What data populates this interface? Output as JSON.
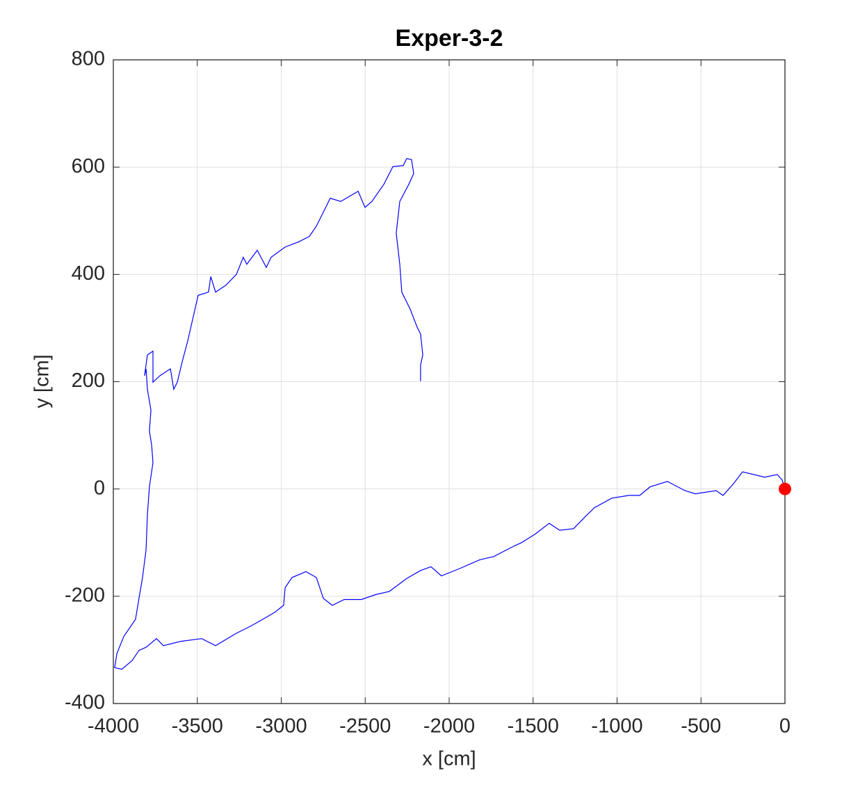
{
  "chart_data": {
    "type": "line",
    "title": "Exper-3-2",
    "x_label": "x [cm]",
    "y_label": "y [cm]",
    "xlim": [
      -4000,
      0
    ],
    "ylim": [
      -400,
      800
    ],
    "xticks": [
      -4000,
      -3500,
      -3000,
      -2500,
      -2000,
      -1500,
      -1000,
      -500,
      0
    ],
    "yticks": [
      -400,
      -200,
      0,
      200,
      400,
      600,
      800
    ],
    "grid": true,
    "series": [
      {
        "color": "#0000ff",
        "x": [
          0,
          -17,
          -46,
          -120,
          -253,
          -306,
          -369,
          -410,
          -534,
          -596,
          -700,
          -803,
          -865,
          -928,
          -1031,
          -1135,
          -1197,
          -1259,
          -1342,
          -1404,
          -1487,
          -1569,
          -1611,
          -1735,
          -1818,
          -1942,
          -2046,
          -2108,
          -2170,
          -2253,
          -2356,
          -2439,
          -2522,
          -2625,
          -2696,
          -2749,
          -2791,
          -2853,
          -2936,
          -2977,
          -2986,
          -3039,
          -3110,
          -3184,
          -3267,
          -3391,
          -3474,
          -3598,
          -3702,
          -3743,
          -3805,
          -3847,
          -3888,
          -3950,
          -3992,
          -3979,
          -3938,
          -3868,
          -3847,
          -3826,
          -3805,
          -3797,
          -3785,
          -3764,
          -3772,
          -3785,
          -3776,
          -3797,
          -3805,
          -3814,
          -3797,
          -3764,
          -3764,
          -3723,
          -3660,
          -3640,
          -3619,
          -3590,
          -3557,
          -3495,
          -3433,
          -3420,
          -3391,
          -3329,
          -3267,
          -3226,
          -3205,
          -3143,
          -3089,
          -3060,
          -2977,
          -2894,
          -2832,
          -2791,
          -2749,
          -2708,
          -2646,
          -2542,
          -2501,
          -2460,
          -2389,
          -2335,
          -2273,
          -2253,
          -2224,
          -2211,
          -2240,
          -2294,
          -2315,
          -2294,
          -2282,
          -2232,
          -2191,
          -2170,
          -2157,
          -2170,
          -2170
        ],
        "values": [
          0,
          17,
          27,
          22,
          32,
          10,
          -12,
          -3,
          -9,
          -3,
          14,
          4,
          -12,
          -12,
          -17,
          -35,
          -54,
          -74,
          -77,
          -64,
          -84,
          -100,
          -106,
          -126,
          -132,
          -149,
          -162,
          -145,
          -152,
          -167,
          -191,
          -197,
          -206,
          -206,
          -217,
          -204,
          -165,
          -154,
          -165,
          -184,
          -217,
          -230,
          -243,
          -256,
          -269,
          -292,
          -279,
          -284,
          -292,
          -279,
          -295,
          -301,
          -320,
          -336,
          -333,
          -307,
          -275,
          -243,
          -204,
          -165,
          -113,
          -48,
          4,
          49,
          82,
          108,
          147,
          186,
          224,
          211,
          250,
          257,
          199,
          211,
          224,
          186,
          199,
          237,
          276,
          361,
          367,
          396,
          367,
          380,
          400,
          432,
          419,
          445,
          413,
          432,
          451,
          461,
          471,
          490,
          516,
          542,
          536,
          555,
          525,
          536,
          568,
          601,
          603,
          616,
          614,
          588,
          568,
          536,
          477,
          419,
          367,
          335,
          302,
          289,
          250,
          231,
          201
        ]
      }
    ],
    "marker": {
      "x": 0,
      "y": 0,
      "color": "#ff0000"
    }
  }
}
